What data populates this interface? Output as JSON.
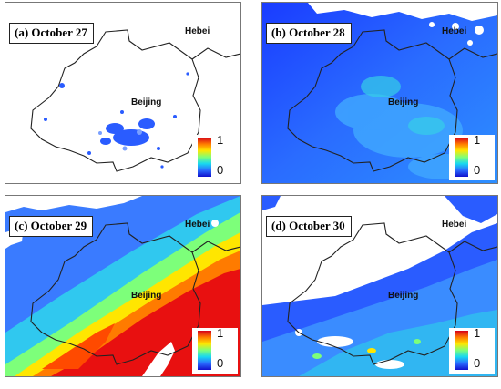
{
  "panels": [
    {
      "title": "(a) October 27",
      "label_hebei": "Hebei",
      "label_beijing": "Beijing",
      "colorbar_max": "1",
      "colorbar_min": "0"
    },
    {
      "title": "(b) October 28",
      "label_hebei": "Hebei",
      "label_beijing": "Beijing",
      "colorbar_max": "1",
      "colorbar_min": "0"
    },
    {
      "title": "(c) October 29",
      "label_hebei": "Hebei",
      "label_beijing": "Beijing",
      "colorbar_max": "1",
      "colorbar_min": "0"
    },
    {
      "title": "(d) October 30",
      "label_hebei": "Hebei",
      "label_beijing": "Beijing",
      "colorbar_max": "1",
      "colorbar_min": "0"
    }
  ],
  "colormap": [
    "#1010cc",
    "#2a6bff",
    "#18d8f0",
    "#7dff7a",
    "#ffe600",
    "#ff7b00",
    "#d6001a"
  ]
}
